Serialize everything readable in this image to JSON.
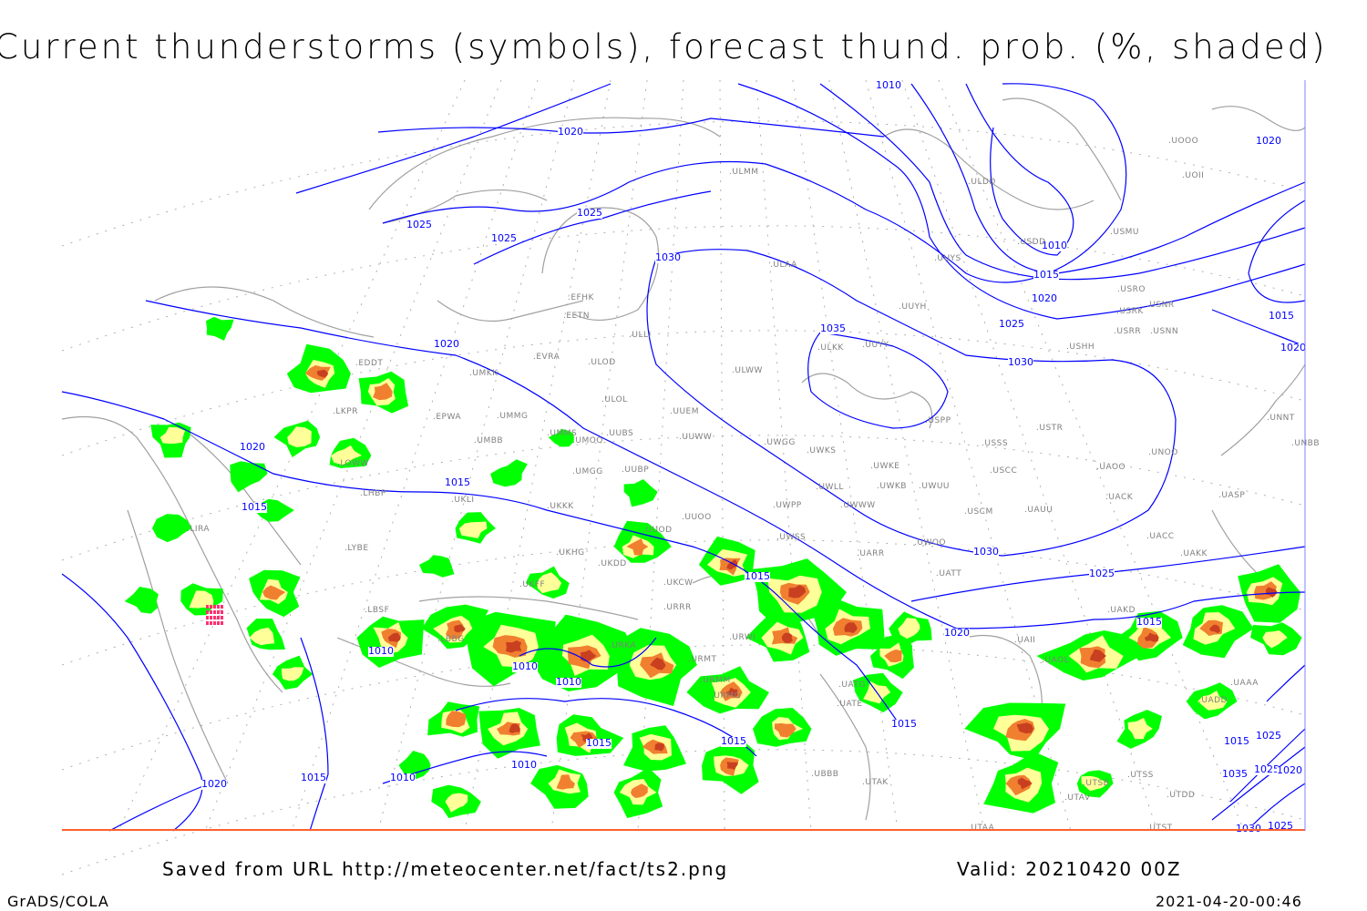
{
  "title": "Current thunderstorms (symbols), forecast thund. prob. (%, shaded)",
  "footer": {
    "source": "Saved from URL http://meteocenter.net/fact/ts2.png",
    "valid": "Valid: 20210420 00Z",
    "software": "GrADS/COLA",
    "timestamp": "2021-04-20-00:46"
  },
  "colors": {
    "isobar": "#0000ff",
    "coastline": "#a0a0a0",
    "prob_low": "#00ff00",
    "prob_mid": "#ffff99",
    "prob_high": "#f08030",
    "prob_max": "#c84020",
    "storm_symbol": "#ff3070",
    "frame": "#ff6030"
  },
  "isobar_labels": [
    "1010",
    "1015",
    "1020",
    "1025",
    "1030",
    "1035"
  ],
  "stations": [
    "EDDT",
    "LKPR",
    "LOWW",
    "LHBP",
    "LIRA",
    "LYBE",
    "LBSF",
    "EPWA",
    "UMMG",
    "UMBB",
    "UMMS",
    "UMOO",
    "UUBS",
    "UMKK",
    "EVRA",
    "ULOD",
    "ULOL",
    "UUEM",
    "UUWW",
    "UKLI",
    "UKKK",
    "UMGG",
    "UUBP",
    "UUOO",
    "UUOD",
    "UKHG",
    "UKDD",
    "UKFF",
    "UKCW",
    "URRR",
    "URWI",
    "URMT",
    "URMM",
    "URMG",
    "URKA",
    "LBBG",
    "UWSS",
    "UWPP",
    "UWWW",
    "UWLL",
    "UWKS",
    "UWGG",
    "UWKE",
    "UWKB",
    "UWUU",
    "UWOO",
    "UARR",
    "UATT",
    "UATG",
    "UATE",
    "UAKD",
    "UACC",
    "UAKK",
    "UASP",
    "UACK",
    "UAUU",
    "USCM",
    "USCC",
    "USSS",
    "USTR",
    "USPP",
    "UNOO",
    "UAOO",
    "UNBB",
    "UNNT",
    "USHH",
    "USRR",
    "USNN",
    "USRK",
    "USNR",
    "USRO",
    "USMU",
    "USDD",
    "UOOO",
    "UOII",
    "ULDD",
    "UUYS",
    "UUYH",
    "UUYY",
    "ULKK",
    "ULWW",
    "ULAA",
    "ULLI",
    "EFHK",
    "EETN",
    "ULMM",
    "UTAK",
    "UTAV",
    "UTSB",
    "UTSS",
    "UTST",
    "UTAA",
    "UTDD",
    "UBBB",
    "UAII",
    "UAOL",
    "UAAA",
    "UADD"
  ]
}
